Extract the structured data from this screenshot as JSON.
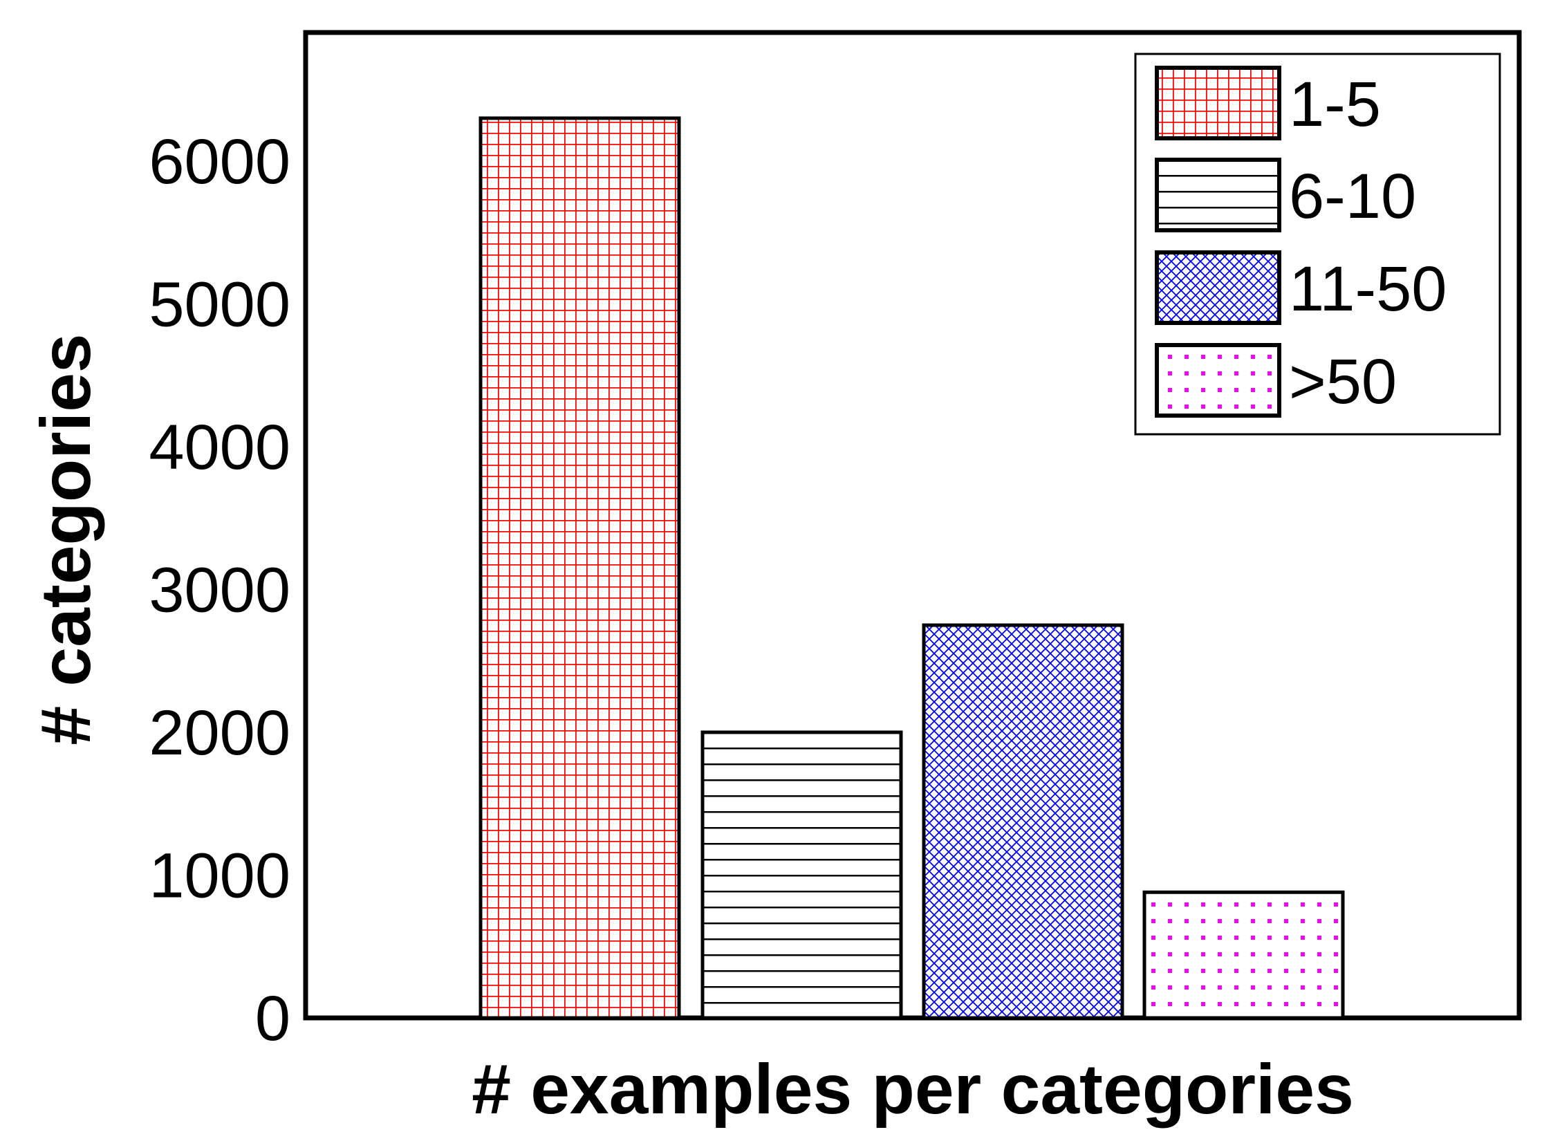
{
  "chart_data": {
    "type": "bar",
    "title": "",
    "xlabel": "# examples per categories",
    "ylabel": "# categories",
    "ylim": [
      0,
      6900
    ],
    "yticks": [
      0,
      1000,
      2000,
      3000,
      4000,
      5000,
      6000
    ],
    "yticklabels": [
      "0",
      "1000",
      "2000",
      "3000",
      "4000",
      "5000",
      "6000"
    ],
    "grid": false,
    "legend_position": "top-right",
    "series": [
      {
        "name": "1-5",
        "value": 6300,
        "color": "#ff0000",
        "pattern": "grid"
      },
      {
        "name": "6-10",
        "value": 2000,
        "color": "#000000",
        "pattern": "horizontal-lines"
      },
      {
        "name": "11-50",
        "value": 2750,
        "color": "#0000ff",
        "pattern": "diagonal-crosshatch"
      },
      {
        "name": ">50",
        "value": 880,
        "color": "#ff00ff",
        "pattern": "dots"
      }
    ]
  }
}
